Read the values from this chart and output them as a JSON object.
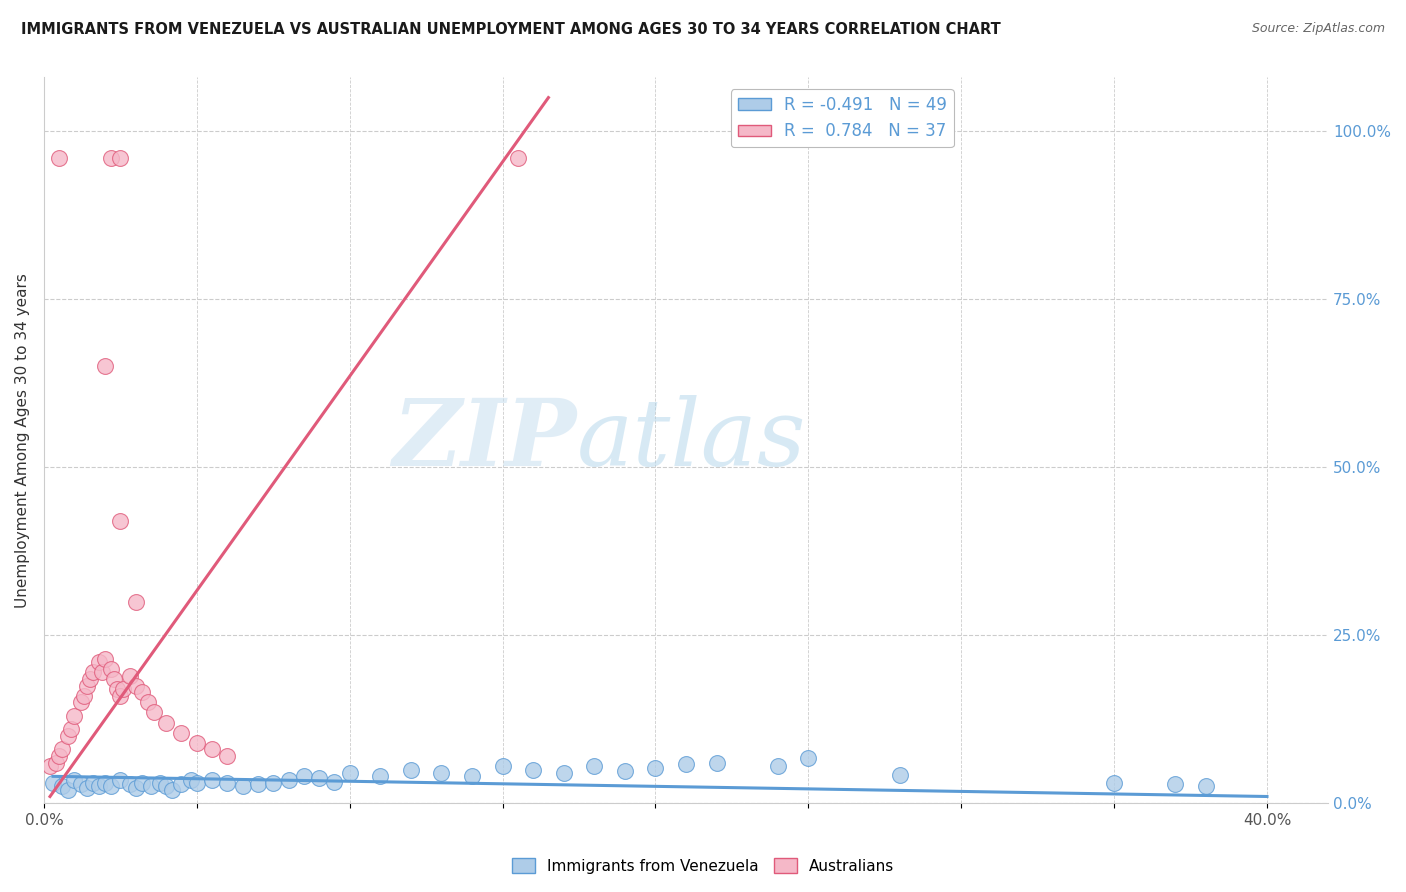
{
  "title": "IMMIGRANTS FROM VENEZUELA VS AUSTRALIAN UNEMPLOYMENT AMONG AGES 30 TO 34 YEARS CORRELATION CHART",
  "source": "Source: ZipAtlas.com",
  "ylabel": "Unemployment Among Ages 30 to 34 years",
  "xlim": [
    0.0,
    0.42
  ],
  "ylim": [
    0.0,
    1.08
  ],
  "x_ticks": [
    0.0,
    0.05,
    0.1,
    0.15,
    0.2,
    0.25,
    0.3,
    0.35,
    0.4
  ],
  "x_tick_labels": [
    "0.0%",
    "",
    "",
    "",
    "",
    "",
    "",
    "",
    "40.0%"
  ],
  "y_tick_labels_right": [
    "0.0%",
    "25.0%",
    "50.0%",
    "75.0%",
    "100.0%"
  ],
  "y_ticks_right": [
    0.0,
    0.25,
    0.5,
    0.75,
    1.0
  ],
  "legend_blue_R": "-0.491",
  "legend_blue_N": "49",
  "legend_pink_R": "0.784",
  "legend_pink_N": "37",
  "blue_color": "#aecce8",
  "pink_color": "#f5b8c8",
  "blue_line_color": "#5b9bd5",
  "pink_line_color": "#e05a7a",
  "watermark_zip": "ZIP",
  "watermark_atlas": "atlas",
  "blue_scatter_x": [
    0.003,
    0.006,
    0.008,
    0.01,
    0.012,
    0.014,
    0.016,
    0.018,
    0.02,
    0.022,
    0.025,
    0.028,
    0.03,
    0.032,
    0.035,
    0.038,
    0.04,
    0.042,
    0.045,
    0.048,
    0.05,
    0.055,
    0.06,
    0.065,
    0.07,
    0.075,
    0.08,
    0.085,
    0.09,
    0.095,
    0.1,
    0.11,
    0.12,
    0.13,
    0.14,
    0.15,
    0.16,
    0.17,
    0.18,
    0.19,
    0.2,
    0.21,
    0.22,
    0.24,
    0.25,
    0.28,
    0.35,
    0.37,
    0.38
  ],
  "blue_scatter_y": [
    0.03,
    0.025,
    0.02,
    0.035,
    0.028,
    0.022,
    0.03,
    0.025,
    0.03,
    0.025,
    0.035,
    0.028,
    0.022,
    0.03,
    0.025,
    0.03,
    0.025,
    0.02,
    0.028,
    0.035,
    0.03,
    0.035,
    0.03,
    0.025,
    0.028,
    0.03,
    0.035,
    0.04,
    0.038,
    0.032,
    0.045,
    0.04,
    0.05,
    0.045,
    0.04,
    0.055,
    0.05,
    0.045,
    0.055,
    0.048,
    0.052,
    0.058,
    0.06,
    0.055,
    0.068,
    0.042,
    0.03,
    0.028,
    0.025
  ],
  "blue_trend_x": [
    0.003,
    0.4
  ],
  "blue_trend_y": [
    0.04,
    0.01
  ],
  "pink_scatter_x": [
    0.002,
    0.004,
    0.005,
    0.006,
    0.008,
    0.009,
    0.01,
    0.012,
    0.013,
    0.014,
    0.015,
    0.016,
    0.018,
    0.019,
    0.02,
    0.022,
    0.023,
    0.024,
    0.025,
    0.026,
    0.028,
    0.03,
    0.032,
    0.034,
    0.036,
    0.04,
    0.045,
    0.05,
    0.055,
    0.06,
    0.02,
    0.025,
    0.03,
    0.155,
    0.005,
    0.022,
    0.025
  ],
  "pink_scatter_y": [
    0.055,
    0.06,
    0.07,
    0.08,
    0.1,
    0.11,
    0.13,
    0.15,
    0.16,
    0.175,
    0.185,
    0.195,
    0.21,
    0.195,
    0.215,
    0.2,
    0.185,
    0.17,
    0.16,
    0.17,
    0.19,
    0.175,
    0.165,
    0.15,
    0.135,
    0.12,
    0.105,
    0.09,
    0.08,
    0.07,
    0.65,
    0.42,
    0.3,
    0.96,
    0.96,
    0.96,
    0.96
  ],
  "pink_trend_x": [
    0.002,
    0.165
  ],
  "pink_trend_y": [
    0.01,
    1.05
  ]
}
